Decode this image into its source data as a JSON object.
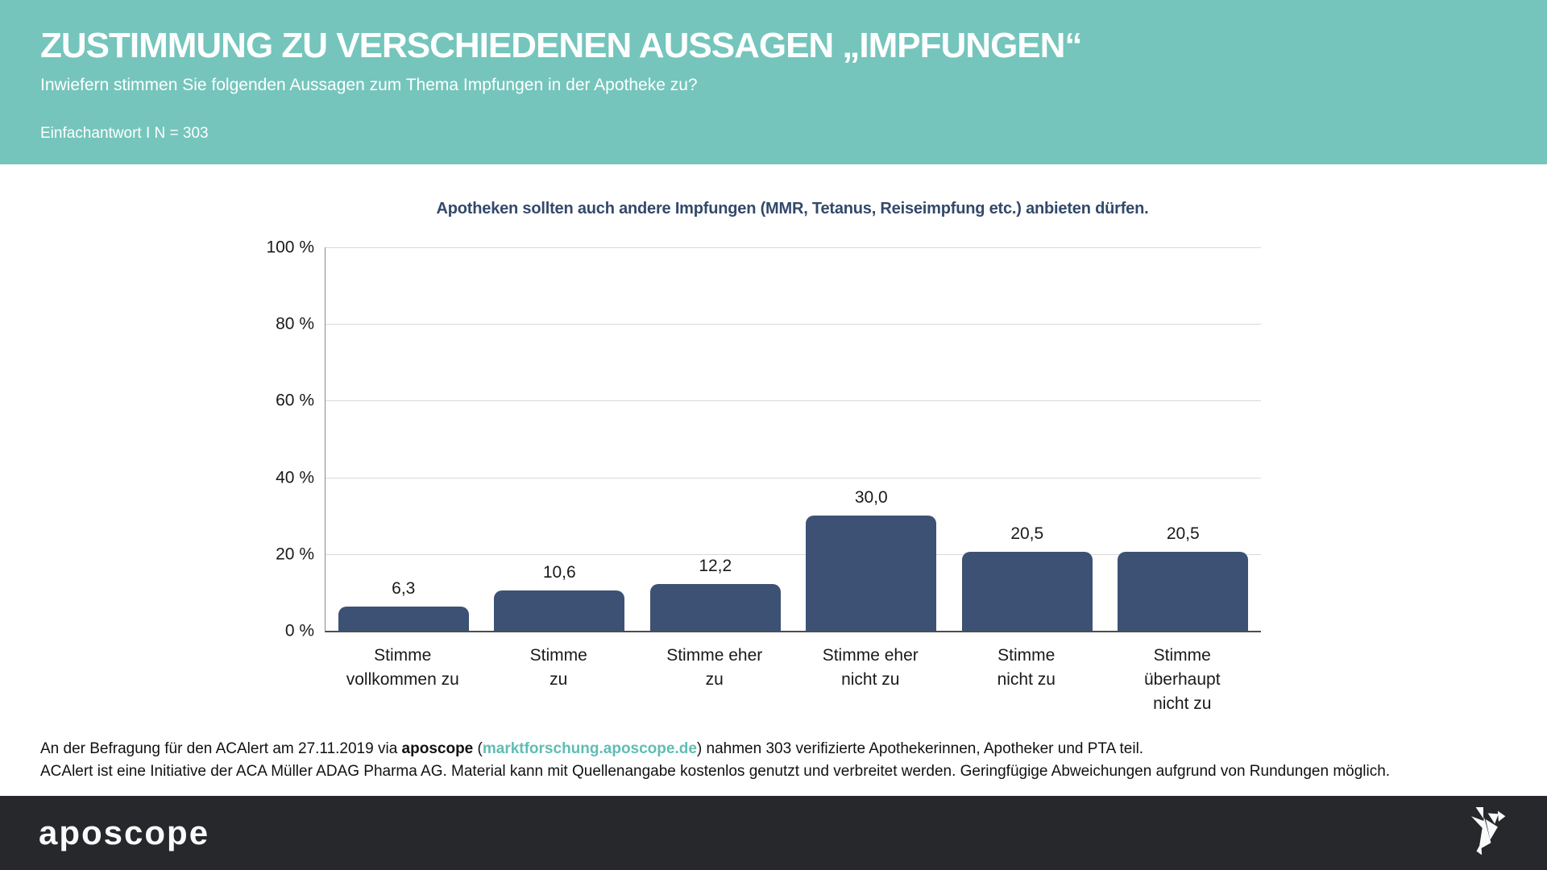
{
  "header": {
    "bg_color": "#75c5bc",
    "title": "ZUSTIMMUNG ZU VERSCHIEDENEN AUSSAGEN „IMPFUNGEN“",
    "subtitle": "Inwiefern stimmen Sie folgenden Aussagen zum Thema Impfungen in der Apotheke zu?",
    "meta": "Einfachantwort I N = 303"
  },
  "chart_data": {
    "type": "bar",
    "title": "Apotheken sollten auch andere Impfungen (MMR, Tetanus, Reiseimpfung etc.) anbieten dürfen.",
    "categories": [
      "Stimme vollkommen zu",
      "Stimme zu",
      "Stimme eher zu",
      "Stimme eher nicht zu",
      "Stimme nicht zu",
      "Stimme überhaupt nicht zu"
    ],
    "category_lines": [
      [
        "Stimme",
        "vollkommen zu"
      ],
      [
        "Stimme",
        "zu"
      ],
      [
        "Stimme eher",
        "zu"
      ],
      [
        "Stimme eher",
        "nicht zu"
      ],
      [
        "Stimme",
        "nicht zu"
      ],
      [
        "Stimme",
        "überhaupt",
        "nicht zu"
      ]
    ],
    "values": [
      6.3,
      10.6,
      12.2,
      30.0,
      20.5,
      20.5
    ],
    "value_labels": [
      "6,3",
      "10,6",
      "12,2",
      "30,0",
      "20,5",
      "20,5"
    ],
    "xlabel": "",
    "ylabel": "",
    "ylim": [
      0,
      100
    ],
    "ytick_step": 20,
    "yticks": [
      "0 %",
      "20 %",
      "40 %",
      "60 %",
      "80 %",
      "100 %"
    ],
    "grid": true,
    "legend": false,
    "bar_color": "#3d5174",
    "title_color": "#33496b",
    "gridline_color": "#d9d9d9"
  },
  "footnote": {
    "line1_prefix": "An der Befragung für den ACAlert am 27.11.2019 via ",
    "line1_bold": "aposcope",
    "line1_mid": " (",
    "line1_link": "marktforschung.aposcope.de",
    "line1_suffix": ") nahmen 303 verifizierte Apothekerinnen, Apotheker und PTA teil.",
    "line2": "ACAlert ist eine Initiative der ACA Müller ADAG Pharma AG. Material kann mit Quellenangabe kostenlos genutzt und verbreitet werden. Geringfügige Abweichungen aufgrund von Rundungen möglich.",
    "link_color": "#5fbdb4"
  },
  "footer": {
    "bg_color": "#26282c",
    "logo_text": "aposcope",
    "logo_icon": "origami-bird-icon"
  }
}
